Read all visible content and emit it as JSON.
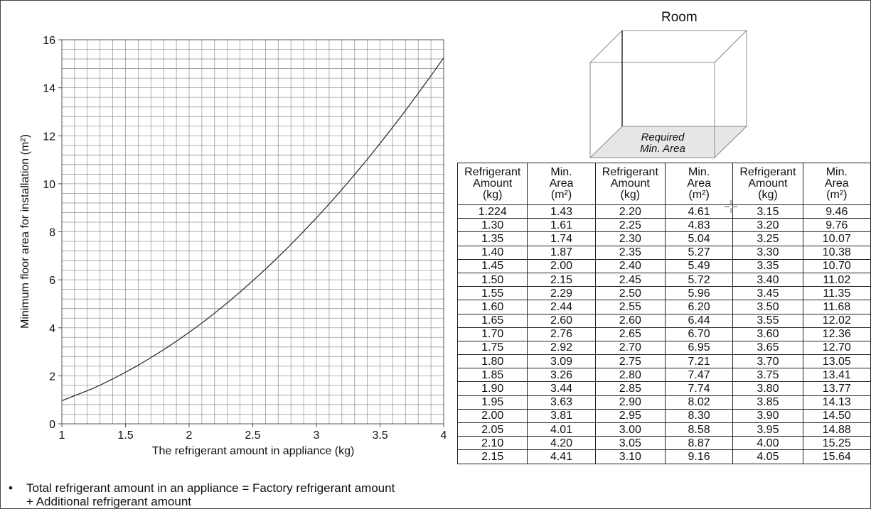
{
  "chart_data": {
    "type": "line",
    "xlabel": "The refrigerant amount in appliance (kg)",
    "ylabel": "Minimum floor area for installation (m²)",
    "xlim": [
      1,
      4
    ],
    "ylim": [
      0,
      16
    ],
    "x_ticks": [
      "1",
      "1.5",
      "2",
      "2.5",
      "3",
      "3.5",
      "4"
    ],
    "y_ticks": [
      "0",
      "2",
      "4",
      "6",
      "8",
      "10",
      "12",
      "14",
      "16"
    ],
    "grid": true,
    "series": [
      {
        "x": [
          1.0,
          1.224,
          1.3,
          1.4,
          1.5,
          1.6,
          1.7,
          1.8,
          1.9,
          2.0,
          2.1,
          2.2,
          2.3,
          2.4,
          2.5,
          2.6,
          2.7,
          2.8,
          2.9,
          3.0,
          3.1,
          3.2,
          3.3,
          3.4,
          3.5,
          3.6,
          3.7,
          3.8,
          3.9,
          4.0
        ],
        "values": [
          0.96,
          1.43,
          1.61,
          1.87,
          2.15,
          2.44,
          2.76,
          3.09,
          3.44,
          3.81,
          4.2,
          4.61,
          5.04,
          5.49,
          5.96,
          6.44,
          6.95,
          7.47,
          8.02,
          8.58,
          9.16,
          9.76,
          10.38,
          11.02,
          11.68,
          12.36,
          13.05,
          13.77,
          14.5,
          15.25
        ]
      }
    ]
  },
  "room": {
    "title": "Room",
    "floor_label_1": "Required",
    "floor_label_2": "Min. Area"
  },
  "table": {
    "headers": [
      [
        "Refrigerant",
        "Amount",
        "(kg)"
      ],
      [
        "Min.",
        "Area",
        "(m²)"
      ],
      [
        "Refrigerant",
        "Amount",
        "(kg)"
      ],
      [
        "Min.",
        "Area",
        "(m²)"
      ],
      [
        "Refrigerant",
        "Amount",
        "(kg)"
      ],
      [
        "Min.",
        "Area",
        "(m²)"
      ]
    ],
    "rows": [
      [
        "1.224",
        "1.43",
        "2.20",
        "4.61",
        "3.15",
        "9.46"
      ],
      [
        "1.30",
        "1.61",
        "2.25",
        "4.83",
        "3.20",
        "9.76"
      ],
      [
        "1.35",
        "1.74",
        "2.30",
        "5.04",
        "3.25",
        "10.07"
      ],
      [
        "1.40",
        "1.87",
        "2.35",
        "5.27",
        "3.30",
        "10.38"
      ],
      [
        "1.45",
        "2.00",
        "2.40",
        "5.49",
        "3.35",
        "10.70"
      ],
      [
        "1.50",
        "2.15",
        "2.45",
        "5.72",
        "3.40",
        "11.02"
      ],
      [
        "1.55",
        "2.29",
        "2.50",
        "5.96",
        "3.45",
        "11.35"
      ],
      [
        "1.60",
        "2.44",
        "2.55",
        "6.20",
        "3.50",
        "11.68"
      ],
      [
        "1.65",
        "2.60",
        "2.60",
        "6.44",
        "3.55",
        "12.02"
      ],
      [
        "1.70",
        "2.76",
        "2.65",
        "6.70",
        "3.60",
        "12.36"
      ],
      [
        "1.75",
        "2.92",
        "2.70",
        "6.95",
        "3.65",
        "12.70"
      ],
      [
        "1.80",
        "3.09",
        "2.75",
        "7.21",
        "3.70",
        "13.05"
      ],
      [
        "1.85",
        "3.26",
        "2.80",
        "7.47",
        "3.75",
        "13.41"
      ],
      [
        "1.90",
        "3.44",
        "2.85",
        "7.74",
        "3.80",
        "13.77"
      ],
      [
        "1.95",
        "3.63",
        "2.90",
        "8.02",
        "3.85",
        "14.13"
      ],
      [
        "2.00",
        "3.81",
        "2.95",
        "8.30",
        "3.90",
        "14.50"
      ],
      [
        "2.05",
        "4.01",
        "3.00",
        "8.58",
        "3.95",
        "14.88"
      ],
      [
        "2.10",
        "4.20",
        "3.05",
        "8.87",
        "4.00",
        "15.25"
      ],
      [
        "2.15",
        "4.41",
        "3.10",
        "9.16",
        "4.05",
        "15.64"
      ]
    ]
  },
  "note": {
    "bullet": "•",
    "line1": "Total refrigerant amount in an appliance = Factory refrigerant amount",
    "line2": "+ Additional refrigerant amount"
  }
}
